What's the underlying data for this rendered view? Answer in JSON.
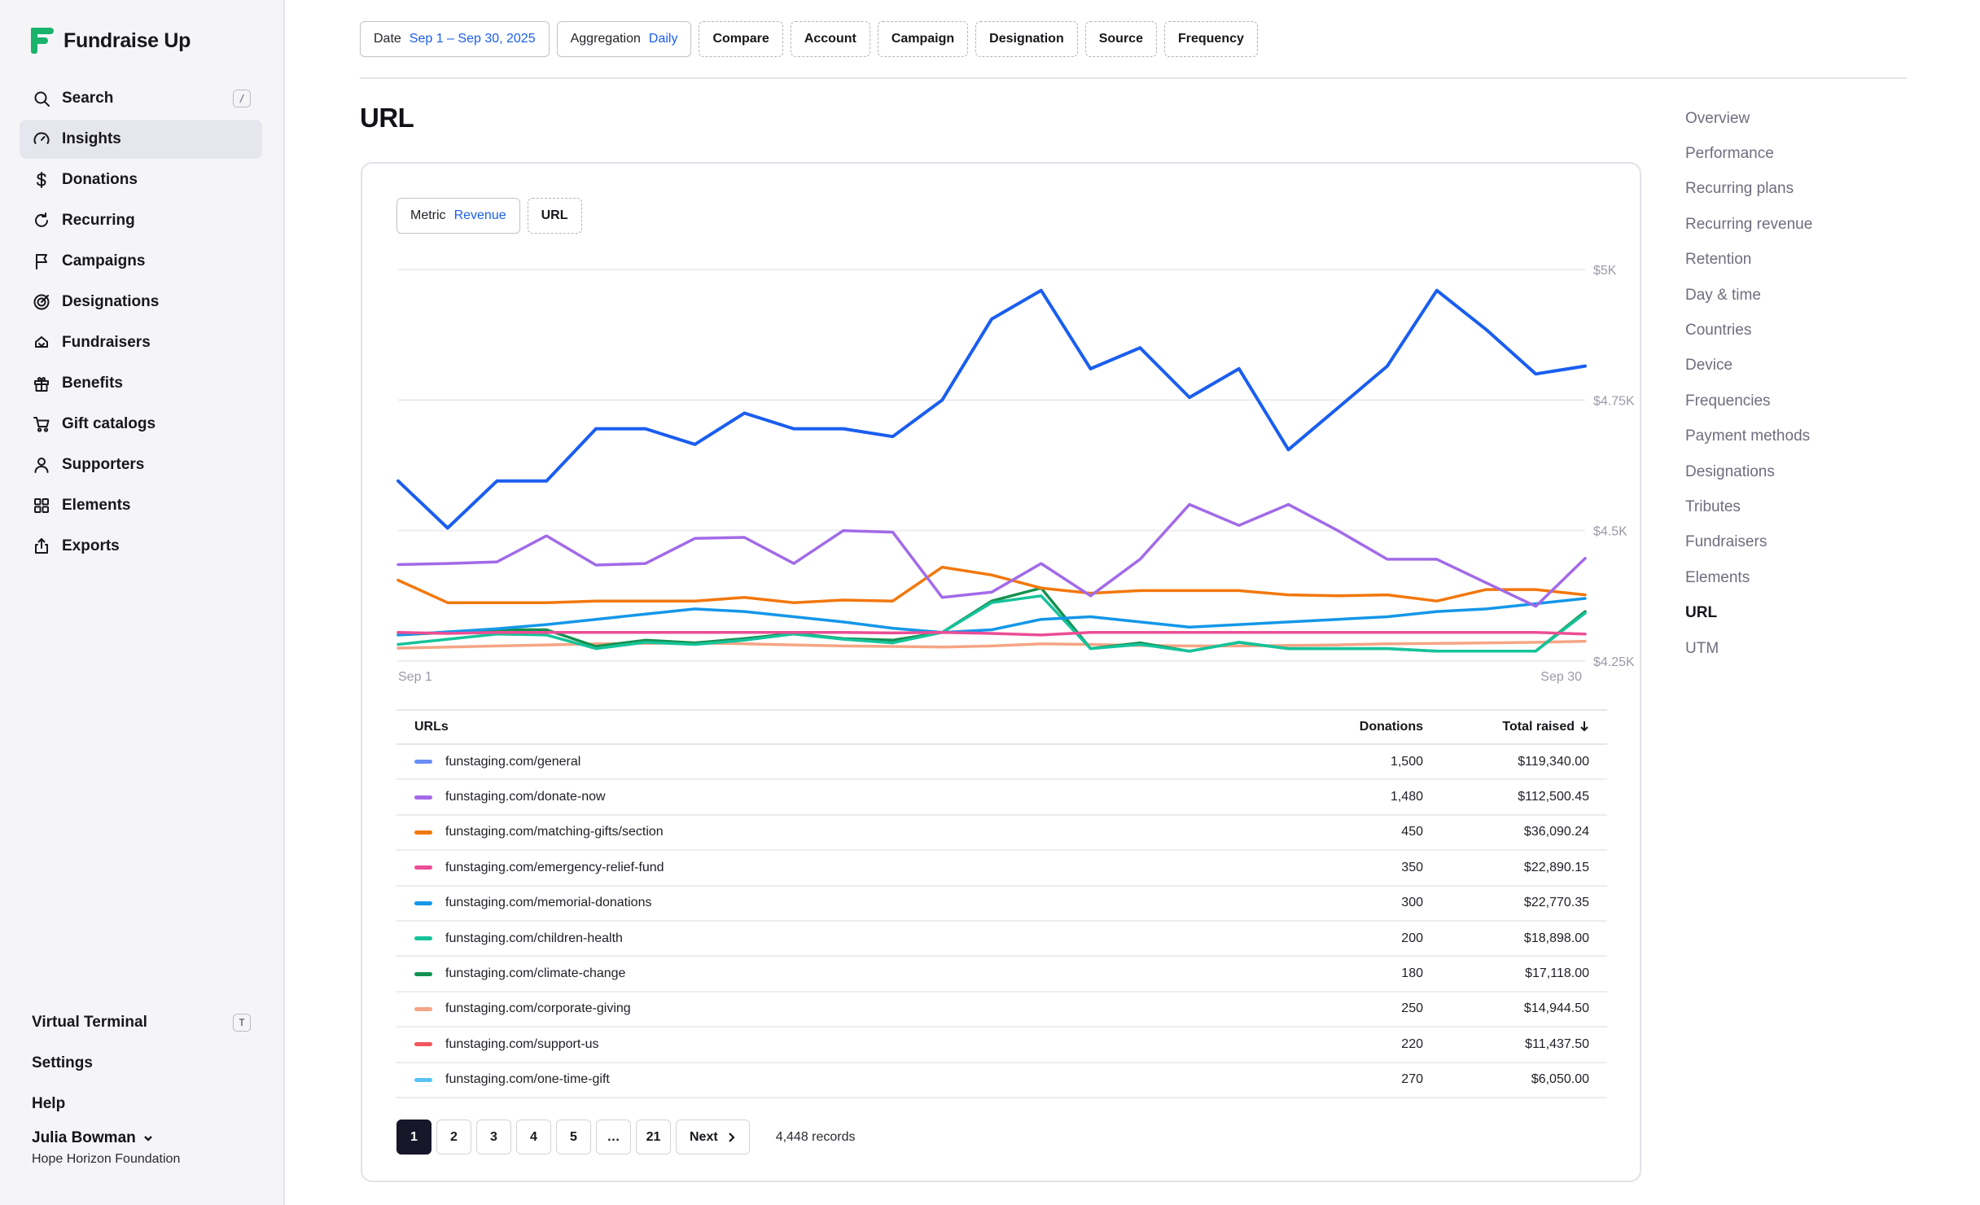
{
  "brand": {
    "name": "Fundraise Up",
    "accent": "#19b36b"
  },
  "sidebar": {
    "items": [
      {
        "label": "Search",
        "icon": "search-icon",
        "shortcut": "/"
      },
      {
        "label": "Insights",
        "icon": "gauge-icon",
        "active": true
      },
      {
        "label": "Donations",
        "icon": "dollar-icon"
      },
      {
        "label": "Recurring",
        "icon": "refresh-icon"
      },
      {
        "label": "Campaigns",
        "icon": "flag-icon"
      },
      {
        "label": "Designations",
        "icon": "target-icon"
      },
      {
        "label": "Fundraisers",
        "icon": "heart-hands-icon"
      },
      {
        "label": "Benefits",
        "icon": "gift-icon"
      },
      {
        "label": "Gift catalogs",
        "icon": "cart-icon"
      },
      {
        "label": "Supporters",
        "icon": "user-icon"
      },
      {
        "label": "Elements",
        "icon": "grid-icon"
      },
      {
        "label": "Exports",
        "icon": "export-icon"
      }
    ],
    "bottom": {
      "virtual_terminal": "Virtual Terminal",
      "virtual_terminal_shortcut": "T",
      "settings": "Settings",
      "help": "Help"
    },
    "user": {
      "name": "Julia Bowman",
      "org": "Hope Horizon Foundation"
    }
  },
  "filters": {
    "date_label": "Date",
    "date_value": "Sep 1 – Sep 30, 2025",
    "aggregation_label": "Aggregation",
    "aggregation_value": "Daily",
    "others": [
      "Compare",
      "Account",
      "Campaign",
      "Designation",
      "Source",
      "Frequency"
    ]
  },
  "page": {
    "title": "URL"
  },
  "card": {
    "metric_label": "Metric",
    "metric_value": "Revenue",
    "group_chip": "URL"
  },
  "chart_data": {
    "type": "line",
    "x_start_label": "Sep 1",
    "x_end_label": "Sep 30",
    "y_ticks": [
      "$5K",
      "$4.75K",
      "$4.5K",
      "$4.25K"
    ],
    "ylim": [
      4250,
      5000
    ],
    "grid": true,
    "series": [
      {
        "name": "funstaging.com/general",
        "color": "#1a5ef0",
        "values": [
          4595,
          4505,
          4595,
          4595,
          4695,
          4695,
          4665,
          4725,
          4695,
          4695,
          4680,
          4750,
          4905,
          4960,
          4810,
          4850,
          4755,
          4810,
          4655,
          4735,
          4815,
          4960,
          4885,
          4800,
          4815
        ]
      },
      {
        "name": "funstaging.com/donate-now",
        "color": "#a26ae8",
        "values": [
          4435,
          4437,
          4440,
          4490,
          4434,
          4437,
          4485,
          4487,
          4437,
          4500,
          4497,
          4372,
          4382,
          4437,
          4375,
          4445,
          4550,
          4510,
          4550,
          4500,
          4445,
          4445,
          4400,
          4355,
          4447
        ]
      },
      {
        "name": "funstaging.com/matching-gifts/section",
        "color": "#f2780d",
        "values": [
          4405,
          4362,
          4362,
          4362,
          4365,
          4365,
          4365,
          4372,
          4362,
          4367,
          4365,
          4430,
          4415,
          4390,
          4380,
          4385,
          4385,
          4385,
          4377,
          4375,
          4377,
          4365,
          4387,
          4387,
          4377
        ]
      },
      {
        "name": "funstaging.com/emergency-relief-fund",
        "color": "#ec4d95",
        "values": [
          4305,
          4303,
          4305,
          4305,
          4305,
          4305,
          4305,
          4305,
          4305,
          4305,
          4304,
          4305,
          4303,
          4300,
          4305,
          4305,
          4305,
          4305,
          4305,
          4305,
          4305,
          4305,
          4305,
          4305,
          4302
        ]
      },
      {
        "name": "funstaging.com/memorial-donations",
        "color": "#1497e8",
        "values": [
          4300,
          4306,
          4312,
          4320,
          4330,
          4340,
          4350,
          4345,
          4335,
          4325,
          4313,
          4305,
          4310,
          4330,
          4335,
          4325,
          4315,
          4320,
          4325,
          4330,
          4335,
          4345,
          4350,
          4360,
          4370
        ]
      },
      {
        "name": "funstaging.com/children-health",
        "color": "#16c39a",
        "values": [
          4282,
          4292,
          4302,
          4300,
          4274,
          4286,
          4282,
          4290,
          4302,
          4292,
          4285,
          4305,
          4362,
          4375,
          4274,
          4282,
          4269,
          4286,
          4274,
          4274,
          4274,
          4269,
          4269,
          4269,
          4342
        ]
      },
      {
        "name": "funstaging.com/climate-change",
        "color": "#149150",
        "values": [
          4300,
          4305,
          4310,
          4310,
          4278,
          4290,
          4285,
          4293,
          4303,
          4293,
          4290,
          4305,
          4365,
          4390,
          4274,
          4285,
          4269,
          4286,
          4274,
          4274,
          4274,
          4269,
          4269,
          4269,
          4345
        ]
      },
      {
        "name": "funstaging.com/corporate-giving",
        "color": "#f5a585",
        "values": [
          4275,
          4277,
          4279,
          4281,
          4283,
          4284,
          4285,
          4283,
          4281,
          4279,
          4278,
          4277,
          4279,
          4283,
          4282,
          4280,
          4279,
          4279,
          4280,
          4281,
          4283,
          4284,
          4285,
          4286,
          4288
        ]
      },
      {
        "name": "funstaging.com/support-us",
        "color": "#f0565e",
        "values": []
      },
      {
        "name": "funstaging.com/one-time-gift",
        "color": "#58c2f5",
        "values": []
      }
    ]
  },
  "table": {
    "headers": {
      "url": "URLs",
      "donations": "Donations",
      "total": "Total raised"
    },
    "rows": [
      {
        "url": "funstaging.com/general",
        "donations": "1,500",
        "total": "$119,340.00",
        "color": "#6a8df5"
      },
      {
        "url": "funstaging.com/donate-now",
        "donations": "1,480",
        "total": "$112,500.45",
        "color": "#a26ae8"
      },
      {
        "url": "funstaging.com/matching-gifts/section",
        "donations": "450",
        "total": "$36,090.24",
        "color": "#f2780d"
      },
      {
        "url": "funstaging.com/emergency-relief-fund",
        "donations": "350",
        "total": "$22,890.15",
        "color": "#ec4d95"
      },
      {
        "url": "funstaging.com/memorial-donations",
        "donations": "300",
        "total": "$22,770.35",
        "color": "#1497e8"
      },
      {
        "url": "funstaging.com/children-health",
        "donations": "200",
        "total": "$18,898.00",
        "color": "#16c39a"
      },
      {
        "url": "funstaging.com/climate-change",
        "donations": "180",
        "total": "$17,118.00",
        "color": "#149150"
      },
      {
        "url": "funstaging.com/corporate-giving",
        "donations": "250",
        "total": "$14,944.50",
        "color": "#f5a585"
      },
      {
        "url": "funstaging.com/support-us",
        "donations": "220",
        "total": "$11,437.50",
        "color": "#f0565e"
      },
      {
        "url": "funstaging.com/one-time-gift",
        "donations": "270",
        "total": "$6,050.00",
        "color": "#58c2f5"
      }
    ]
  },
  "pagination": {
    "pages": [
      "1",
      "2",
      "3",
      "4",
      "5",
      "…",
      "21"
    ],
    "current": "1",
    "next_label": "Next",
    "records": "4,448 records"
  },
  "right_nav": {
    "items": [
      "Overview",
      "Performance",
      "Recurring plans",
      "Recurring revenue",
      "Retention",
      "Day & time",
      "Countries",
      "Device",
      "Frequencies",
      "Payment methods",
      "Designations",
      "Tributes",
      "Fundraisers",
      "Elements",
      "URL",
      "UTM"
    ],
    "active": "URL"
  }
}
